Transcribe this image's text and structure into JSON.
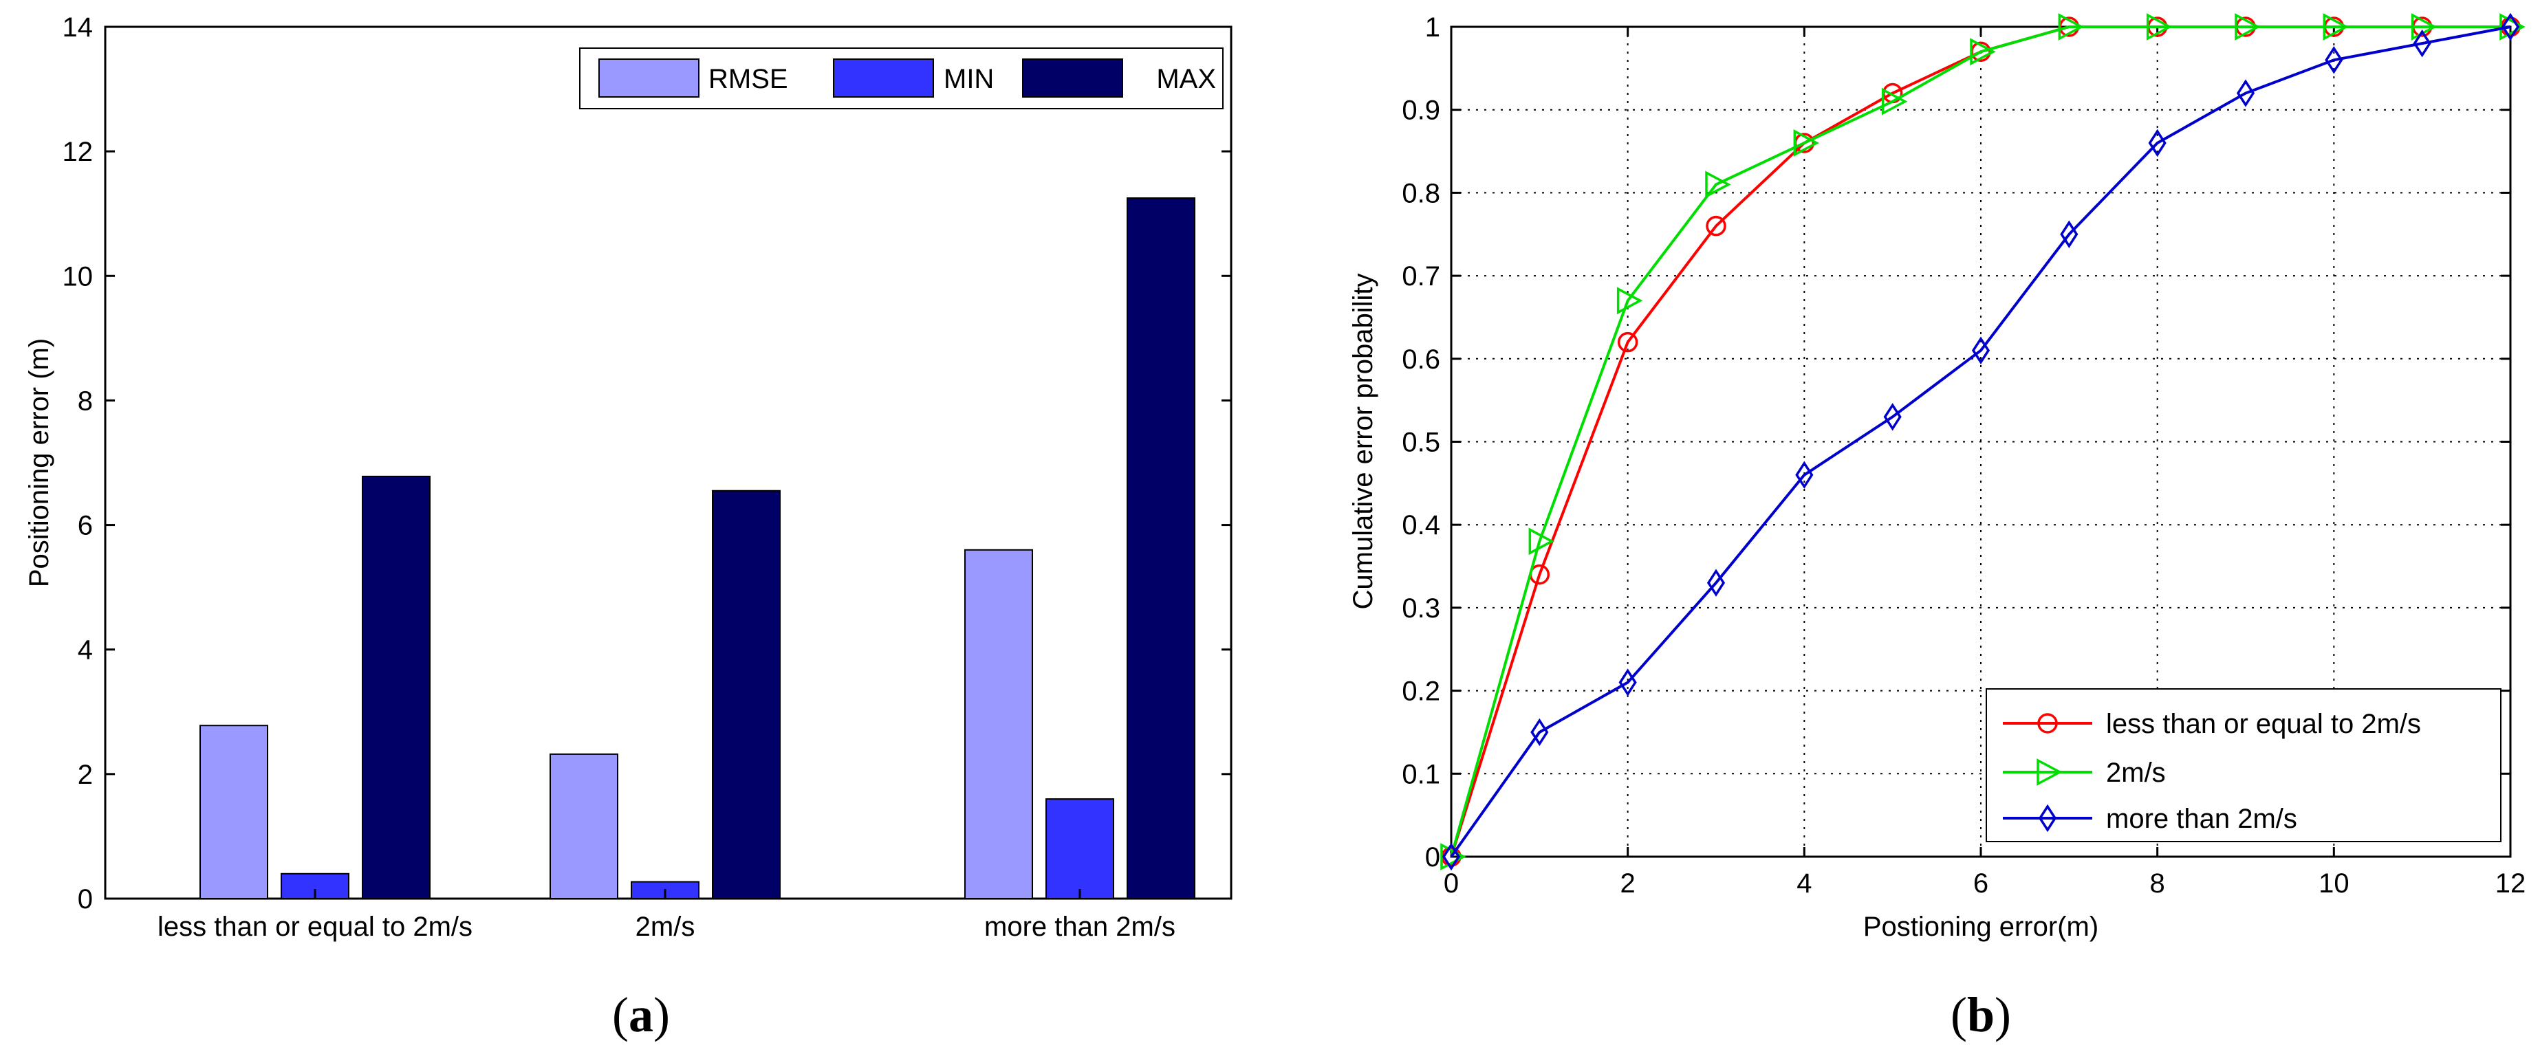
{
  "chart_data": [
    {
      "type": "bar",
      "panel_label_open": "(",
      "panel_label_letter": "a",
      "panel_label_close": ")",
      "ylabel": "Positioning error (m)",
      "xlabel": "",
      "ylim": [
        0,
        14
      ],
      "yticks": [
        0,
        2,
        4,
        6,
        8,
        10,
        12,
        14
      ],
      "categories": [
        "less than or equal to 2m/s",
        "2m/s",
        "more than 2m/s"
      ],
      "series": [
        {
          "name": "RMSE",
          "color": "#9999ff",
          "values": [
            2.78,
            2.32,
            5.6
          ]
        },
        {
          "name": "MIN",
          "color": "#3333ff",
          "values": [
            0.4,
            0.27,
            1.6
          ]
        },
        {
          "name": "MAX",
          "color": "#000066",
          "values": [
            6.78,
            6.55,
            11.25
          ]
        }
      ],
      "legend_position": "top-right",
      "grid": false
    },
    {
      "type": "line",
      "panel_label_open": "(",
      "panel_label_letter": "b",
      "panel_label_close": ")",
      "ylabel": "Cumulative error probability",
      "xlabel": "Postioning error(m)",
      "xlim": [
        0,
        12
      ],
      "ylim": [
        0,
        1
      ],
      "xticks": [
        0,
        2,
        4,
        6,
        8,
        10,
        12
      ],
      "yticks": [
        0,
        0.1,
        0.2,
        0.3,
        0.4,
        0.5,
        0.6,
        0.7,
        0.8,
        0.9,
        1
      ],
      "grid": true,
      "legend_position": "bottom-right",
      "series": [
        {
          "name": "less than or equal to 2m/s",
          "color": "#ff0000",
          "marker": "circle",
          "x": [
            0,
            1,
            2,
            3,
            4,
            5,
            6,
            7,
            8,
            9,
            10,
            11,
            12
          ],
          "y": [
            0,
            0.34,
            0.62,
            0.76,
            0.86,
            0.92,
            0.97,
            1,
            1,
            1,
            1,
            1,
            1
          ]
        },
        {
          "name": "2m/s",
          "color": "#00dd00",
          "marker": "triangle-right",
          "x": [
            0,
            1,
            2,
            3,
            4,
            5,
            6,
            7,
            8,
            9,
            10,
            11,
            12
          ],
          "y": [
            0,
            0.38,
            0.67,
            0.81,
            0.86,
            0.91,
            0.97,
            1,
            1,
            1,
            1,
            1,
            1
          ]
        },
        {
          "name": "more than 2m/s",
          "color": "#0000cc",
          "marker": "diamond",
          "x": [
            0,
            1,
            2,
            3,
            4,
            5,
            6,
            7,
            8,
            9,
            10,
            11,
            12
          ],
          "y": [
            0,
            0.15,
            0.21,
            0.33,
            0.46,
            0.53,
            0.61,
            0.75,
            0.86,
            0.92,
            0.96,
            0.98,
            1
          ]
        }
      ]
    }
  ]
}
